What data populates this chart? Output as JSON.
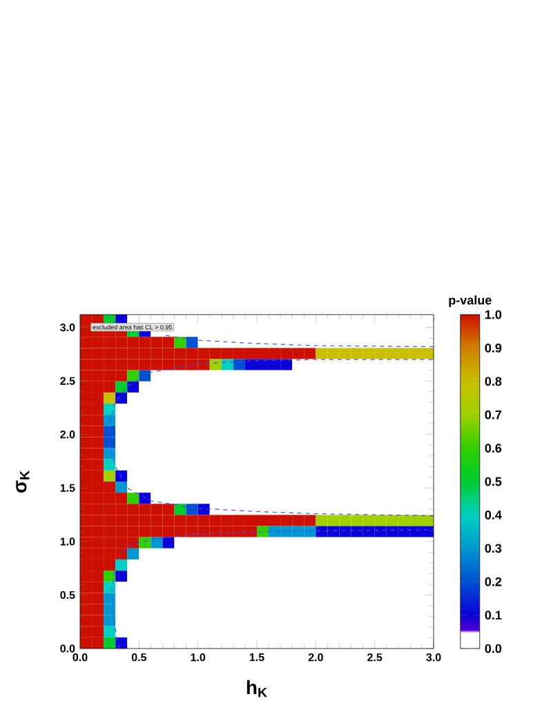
{
  "chart_data": {
    "type": "heatmap",
    "xlabel": "h$_{K}$",
    "ylabel": "σ$_{K}$",
    "clabel": "p-value",
    "annotations": [
      "excluded area has CL > 0.95"
    ],
    "xlim": [
      0,
      3
    ],
    "ylim": [
      0,
      3.12
    ],
    "xticks": [
      {
        "value": 0,
        "label": "0.0"
      },
      {
        "value": 0.5,
        "label": "0.5"
      },
      {
        "value": 1,
        "label": "1.0"
      },
      {
        "value": 1.5,
        "label": "1.5"
      },
      {
        "value": 2,
        "label": "2.0"
      },
      {
        "value": 2.5,
        "label": "2.5"
      },
      {
        "value": 3,
        "label": "3.0"
      }
    ],
    "yticks": [
      {
        "value": 0,
        "label": "0.0"
      },
      {
        "value": 0.5,
        "label": "0.5"
      },
      {
        "value": 1,
        "label": "1.0"
      },
      {
        "value": 1.5,
        "label": "1.5"
      },
      {
        "value": 2,
        "label": "2.0"
      },
      {
        "value": 2.5,
        "label": "2.5"
      },
      {
        "value": 3,
        "label": "3.0"
      }
    ],
    "clim": [
      0,
      1
    ],
    "cticks": [
      {
        "value": 0,
        "label": "0.0"
      },
      {
        "value": 0.1,
        "label": "0.1"
      },
      {
        "value": 0.2,
        "label": "0.2"
      },
      {
        "value": 0.3,
        "label": "0.3"
      },
      {
        "value": 0.4,
        "label": "0.4"
      },
      {
        "value": 0.5,
        "label": "0.5"
      },
      {
        "value": 0.6,
        "label": "0.6"
      },
      {
        "value": 0.7,
        "label": "0.7"
      },
      {
        "value": 0.8,
        "label": "0.8"
      },
      {
        "value": 0.9,
        "label": "0.9"
      },
      {
        "value": 1,
        "label": "1.0"
      }
    ],
    "cells": [
      [
        1,
        1,
        0.5,
        0.1,
        0,
        0,
        0,
        0,
        0,
        0,
        0,
        0,
        0,
        0,
        0,
        0,
        0,
        0,
        0,
        0,
        0,
        0,
        0,
        0,
        0,
        0,
        0,
        0,
        0,
        0
      ],
      [
        1,
        1,
        1,
        1,
        0.5,
        0.1,
        0,
        0,
        0,
        0,
        0,
        0,
        0,
        0,
        0,
        0,
        0,
        0,
        0,
        0,
        0,
        0,
        0,
        0,
        0,
        0,
        0,
        0,
        0,
        0
      ],
      [
        1,
        1,
        1,
        1,
        1,
        1,
        1,
        1,
        0.6,
        0.2,
        0,
        0,
        0,
        0,
        0,
        0,
        0,
        0,
        0,
        0,
        0,
        0,
        0,
        0,
        0,
        0,
        0,
        0,
        0,
        0
      ],
      [
        1,
        1,
        1,
        1,
        1,
        1,
        1,
        1,
        1,
        1,
        1,
        1,
        1,
        1,
        1,
        1,
        1,
        1,
        1,
        1,
        0.8,
        0.8,
        0.8,
        0.8,
        0.8,
        0.8,
        0.8,
        0.8,
        0.8,
        0.8
      ],
      [
        1,
        1,
        1,
        1,
        1,
        1,
        1,
        1,
        1,
        1,
        1,
        0.7,
        0.4,
        0.2,
        0.1,
        0.1,
        0.1,
        0.1,
        0,
        0,
        0,
        0,
        0,
        0,
        0,
        0,
        0,
        0,
        0,
        0
      ],
      [
        1,
        1,
        1,
        1,
        0.6,
        0.2,
        0,
        0,
        0,
        0,
        0,
        0,
        0,
        0,
        0,
        0,
        0,
        0,
        0,
        0,
        0,
        0,
        0,
        0,
        0,
        0,
        0,
        0,
        0,
        0
      ],
      [
        1,
        1,
        1,
        0.5,
        0.1,
        0,
        0,
        0,
        0,
        0,
        0,
        0,
        0,
        0,
        0,
        0,
        0,
        0,
        0,
        0,
        0,
        0,
        0,
        0,
        0,
        0,
        0,
        0,
        0,
        0
      ],
      [
        1,
        1,
        0.8,
        0.1,
        0,
        0,
        0,
        0,
        0,
        0,
        0,
        0,
        0,
        0,
        0,
        0,
        0,
        0,
        0,
        0,
        0,
        0,
        0,
        0,
        0,
        0,
        0,
        0,
        0,
        0
      ],
      [
        1,
        1,
        0.4,
        0,
        0,
        0,
        0,
        0,
        0,
        0,
        0,
        0,
        0,
        0,
        0,
        0,
        0,
        0,
        0,
        0,
        0,
        0,
        0,
        0,
        0,
        0,
        0,
        0,
        0,
        0
      ],
      [
        1,
        1,
        0.3,
        0,
        0,
        0,
        0,
        0,
        0,
        0,
        0,
        0,
        0,
        0,
        0,
        0,
        0,
        0,
        0,
        0,
        0,
        0,
        0,
        0,
        0,
        0,
        0,
        0,
        0,
        0
      ],
      [
        1,
        1,
        0.2,
        0,
        0,
        0,
        0,
        0,
        0,
        0,
        0,
        0,
        0,
        0,
        0,
        0,
        0,
        0,
        0,
        0,
        0,
        0,
        0,
        0,
        0,
        0,
        0,
        0,
        0,
        0
      ],
      [
        1,
        1,
        0.2,
        0,
        0,
        0,
        0,
        0,
        0,
        0,
        0,
        0,
        0,
        0,
        0,
        0,
        0,
        0,
        0,
        0,
        0,
        0,
        0,
        0,
        0,
        0,
        0,
        0,
        0,
        0
      ],
      [
        1,
        1,
        0.3,
        0,
        0,
        0,
        0,
        0,
        0,
        0,
        0,
        0,
        0,
        0,
        0,
        0,
        0,
        0,
        0,
        0,
        0,
        0,
        0,
        0,
        0,
        0,
        0,
        0,
        0,
        0
      ],
      [
        1,
        1,
        0.4,
        0,
        0,
        0,
        0,
        0,
        0,
        0,
        0,
        0,
        0,
        0,
        0,
        0,
        0,
        0,
        0,
        0,
        0,
        0,
        0,
        0,
        0,
        0,
        0,
        0,
        0,
        0
      ],
      [
        1,
        1,
        0.7,
        0.1,
        0,
        0,
        0,
        0,
        0,
        0,
        0,
        0,
        0,
        0,
        0,
        0,
        0,
        0,
        0,
        0,
        0,
        0,
        0,
        0,
        0,
        0,
        0,
        0,
        0,
        0
      ],
      [
        1,
        1,
        1,
        0.3,
        0,
        0,
        0,
        0,
        0,
        0,
        0,
        0,
        0,
        0,
        0,
        0,
        0,
        0,
        0,
        0,
        0,
        0,
        0,
        0,
        0,
        0,
        0,
        0,
        0,
        0
      ],
      [
        1,
        1,
        1,
        1,
        0.6,
        0.1,
        0,
        0,
        0,
        0,
        0,
        0,
        0,
        0,
        0,
        0,
        0,
        0,
        0,
        0,
        0,
        0,
        0,
        0,
        0,
        0,
        0,
        0,
        0,
        0
      ],
      [
        1,
        1,
        1,
        1,
        1,
        1,
        1,
        1,
        0.5,
        0.2,
        0.1,
        0,
        0,
        0,
        0,
        0,
        0,
        0,
        0,
        0,
        0,
        0,
        0,
        0,
        0,
        0,
        0,
        0,
        0,
        0
      ],
      [
        1,
        1,
        1,
        1,
        1,
        1,
        1,
        1,
        1,
        1,
        1,
        1,
        1,
        1,
        1,
        1,
        1,
        1,
        1,
        1,
        0.7,
        0.7,
        0.7,
        0.7,
        0.7,
        0.7,
        0.7,
        0.7,
        0.7,
        0.7
      ],
      [
        1,
        1,
        1,
        1,
        1,
        1,
        1,
        1,
        1,
        1,
        1,
        1,
        1,
        1,
        1,
        0.6,
        0.3,
        0.3,
        0.3,
        0.3,
        0.1,
        0.1,
        0.1,
        0.1,
        0.1,
        0.1,
        0.1,
        0.1,
        0.1,
        0.1
      ],
      [
        1,
        1,
        1,
        1,
        1,
        0.6,
        0.3,
        0.1,
        0,
        0,
        0,
        0,
        0,
        0,
        0,
        0,
        0,
        0,
        0,
        0,
        0,
        0,
        0,
        0,
        0,
        0,
        0,
        0,
        0,
        0
      ],
      [
        1,
        1,
        1,
        1,
        0.3,
        0,
        0,
        0,
        0,
        0,
        0,
        0,
        0,
        0,
        0,
        0,
        0,
        0,
        0,
        0,
        0,
        0,
        0,
        0,
        0,
        0,
        0,
        0,
        0,
        0
      ],
      [
        1,
        1,
        1,
        0.4,
        0,
        0,
        0,
        0,
        0,
        0,
        0,
        0,
        0,
        0,
        0,
        0,
        0,
        0,
        0,
        0,
        0,
        0,
        0,
        0,
        0,
        0,
        0,
        0,
        0,
        0
      ],
      [
        1,
        1,
        0.6,
        0.1,
        0,
        0,
        0,
        0,
        0,
        0,
        0,
        0,
        0,
        0,
        0,
        0,
        0,
        0,
        0,
        0,
        0,
        0,
        0,
        0,
        0,
        0,
        0,
        0,
        0,
        0
      ],
      [
        1,
        1,
        0.4,
        0,
        0,
        0,
        0,
        0,
        0,
        0,
        0,
        0,
        0,
        0,
        0,
        0,
        0,
        0,
        0,
        0,
        0,
        0,
        0,
        0,
        0,
        0,
        0,
        0,
        0,
        0
      ],
      [
        1,
        1,
        0.3,
        0,
        0,
        0,
        0,
        0,
        0,
        0,
        0,
        0,
        0,
        0,
        0,
        0,
        0,
        0,
        0,
        0,
        0,
        0,
        0,
        0,
        0,
        0,
        0,
        0,
        0,
        0
      ],
      [
        1,
        1,
        0.3,
        0,
        0,
        0,
        0,
        0,
        0,
        0,
        0,
        0,
        0,
        0,
        0,
        0,
        0,
        0,
        0,
        0,
        0,
        0,
        0,
        0,
        0,
        0,
        0,
        0,
        0,
        0
      ],
      [
        1,
        1,
        0.3,
        0,
        0,
        0,
        0,
        0,
        0,
        0,
        0,
        0,
        0,
        0,
        0,
        0,
        0,
        0,
        0,
        0,
        0,
        0,
        0,
        0,
        0,
        0,
        0,
        0,
        0,
        0
      ],
      [
        1,
        1,
        0.4,
        0,
        0,
        0,
        0,
        0,
        0,
        0,
        0,
        0,
        0,
        0,
        0,
        0,
        0,
        0,
        0,
        0,
        0,
        0,
        0,
        0,
        0,
        0,
        0,
        0,
        0,
        0
      ],
      [
        1,
        1,
        0.5,
        0.1,
        0,
        0,
        0,
        0,
        0,
        0,
        0,
        0,
        0,
        0,
        0,
        0,
        0,
        0,
        0,
        0,
        0,
        0,
        0,
        0,
        0,
        0,
        0,
        0,
        0,
        0
      ]
    ],
    "series": [
      {
        "type": "line",
        "color": "#4848ff",
        "line_style": "dashed",
        "x": [
          0.33,
          0.28,
          0.27,
          0.3,
          0.4,
          0.6,
          1.0,
          1.5,
          2.0,
          3.0
        ],
        "values": [
          0,
          0.3,
          0.55,
          0.8,
          0.95,
          1.02,
          1.07,
          1.09,
          1.1,
          1.11
        ]
      },
      {
        "type": "line",
        "color": "#4848ff",
        "line_style": "dashed",
        "x": [
          3.0,
          2.0,
          1.5,
          1.0,
          0.6,
          0.4,
          0.3,
          0.25,
          0.25,
          0.3,
          0.4,
          0.6,
          1.0,
          1.5,
          2.0,
          3.0
        ],
        "values": [
          1.24,
          1.26,
          1.28,
          1.31,
          1.38,
          1.5,
          1.7,
          1.9,
          2.1,
          2.3,
          2.45,
          2.58,
          2.66,
          2.69,
          2.7,
          2.7
        ]
      },
      {
        "type": "line",
        "color": "#4848ff",
        "line_style": "dashed",
        "x": [
          3.0,
          2.0,
          1.5,
          1.0,
          0.7
        ],
        "values": [
          2.82,
          2.83,
          2.85,
          2.88,
          2.93
        ]
      }
    ]
  }
}
